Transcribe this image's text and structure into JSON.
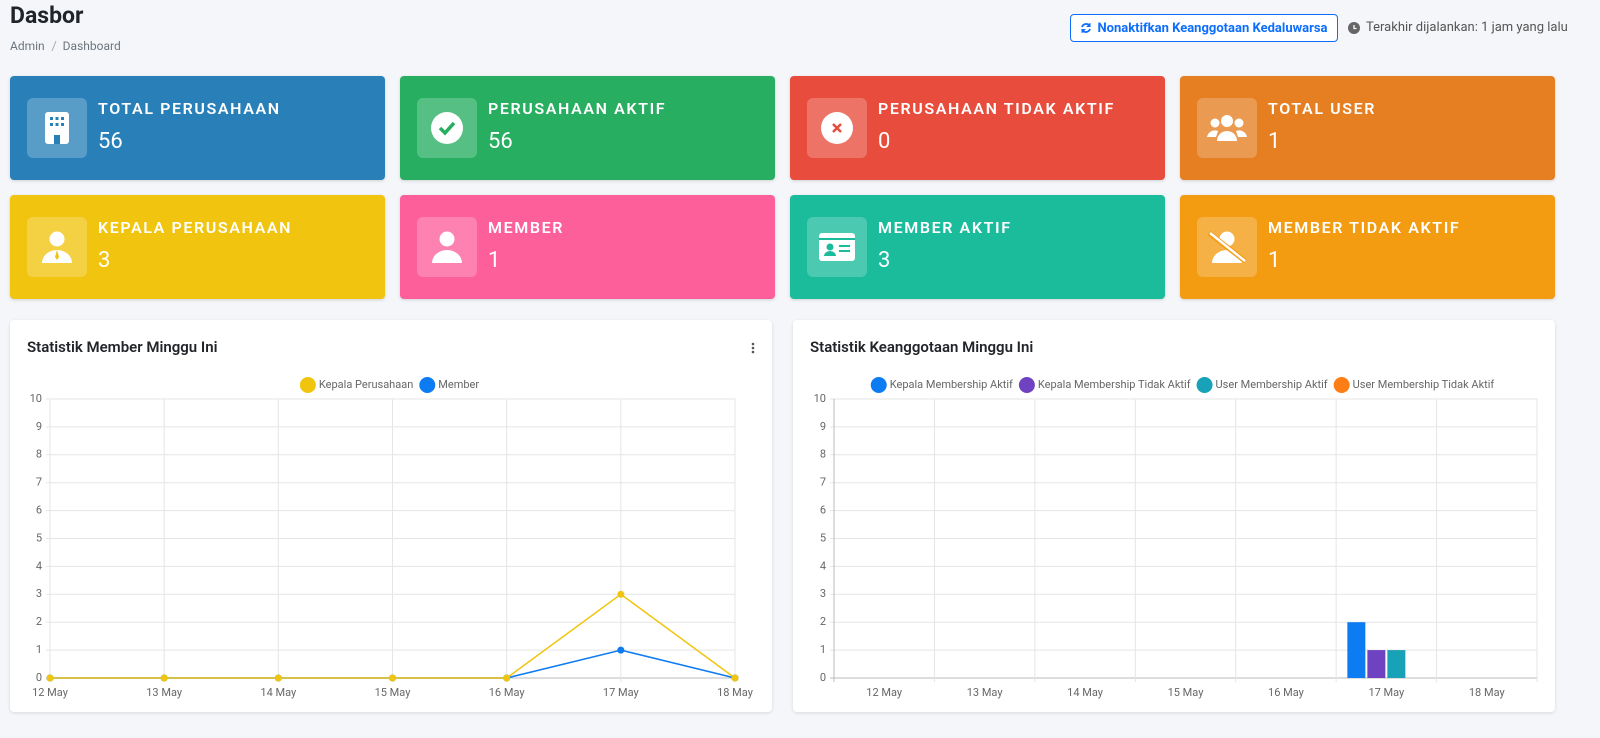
{
  "header": {
    "title": "Dasbor",
    "breadcrumb": [
      "Admin",
      "Dashboard"
    ],
    "button": "Nonaktifkan Keanggotaan Kedaluwarsa",
    "last_run": "Terakhir dijalankan: 1 jam yang lalu"
  },
  "cards": [
    {
      "label": "TOTAL PERUSAHAAN",
      "value": "56",
      "color": "#2980b9"
    },
    {
      "label": "PERUSAHAAN AKTIF",
      "value": "56",
      "color": "#27ae60"
    },
    {
      "label": "PERUSAHAAN TIDAK AKTIF",
      "value": "0",
      "color": "#e74c3c"
    },
    {
      "label": "TOTAL USER",
      "value": "1",
      "color": "#e67e22"
    },
    {
      "label": "KEPALA PERUSAHAAN",
      "value": "3",
      "color": "#f1c40f"
    },
    {
      "label": "MEMBER",
      "value": "1",
      "color": "#fd5f9b"
    },
    {
      "label": "MEMBER AKTIF",
      "value": "3",
      "color": "#1abc9c"
    },
    {
      "label": "MEMBER TIDAK AKTIF",
      "value": "1",
      "color": "#f39c12"
    }
  ],
  "chart_data": [
    {
      "type": "line",
      "title": "Statistik Member Minggu Ini",
      "categories": [
        "12 May",
        "13 May",
        "14 May",
        "15 May",
        "16 May",
        "17 May",
        "18 May"
      ],
      "series": [
        {
          "name": "Kepala Perusahaan",
          "color": "#f1c40f",
          "values": [
            0,
            0,
            0,
            0,
            0,
            3,
            0
          ]
        },
        {
          "name": "Member",
          "color": "#0d7bf2",
          "values": [
            0,
            0,
            0,
            0,
            0,
            1,
            0
          ]
        }
      ],
      "ylim": [
        0,
        10
      ],
      "yticks": [
        0,
        1,
        2,
        3,
        4,
        5,
        6,
        7,
        8,
        9,
        10
      ],
      "grid": true
    },
    {
      "type": "bar",
      "title": "Statistik Keanggotaan Minggu Ini",
      "categories": [
        "12 May",
        "13 May",
        "14 May",
        "15 May",
        "16 May",
        "17 May",
        "18 May"
      ],
      "series": [
        {
          "name": "Kepala Membership Aktif",
          "color": "#0d7bf2",
          "values": [
            0,
            0,
            0,
            0,
            0,
            2,
            0
          ]
        },
        {
          "name": "Kepala Membership Tidak Aktif",
          "color": "#6f42c1",
          "values": [
            0,
            0,
            0,
            0,
            0,
            1,
            0
          ]
        },
        {
          "name": "User Membership Aktif",
          "color": "#17a2b8",
          "values": [
            0,
            0,
            0,
            0,
            0,
            1,
            0
          ]
        },
        {
          "name": "User Membership Tidak Aktif",
          "color": "#fd7e14",
          "values": [
            0,
            0,
            0,
            0,
            0,
            0,
            0
          ]
        }
      ],
      "ylim": [
        0,
        10
      ],
      "yticks": [
        0,
        1,
        2,
        3,
        4,
        5,
        6,
        7,
        8,
        9,
        10
      ],
      "grid": true
    }
  ]
}
